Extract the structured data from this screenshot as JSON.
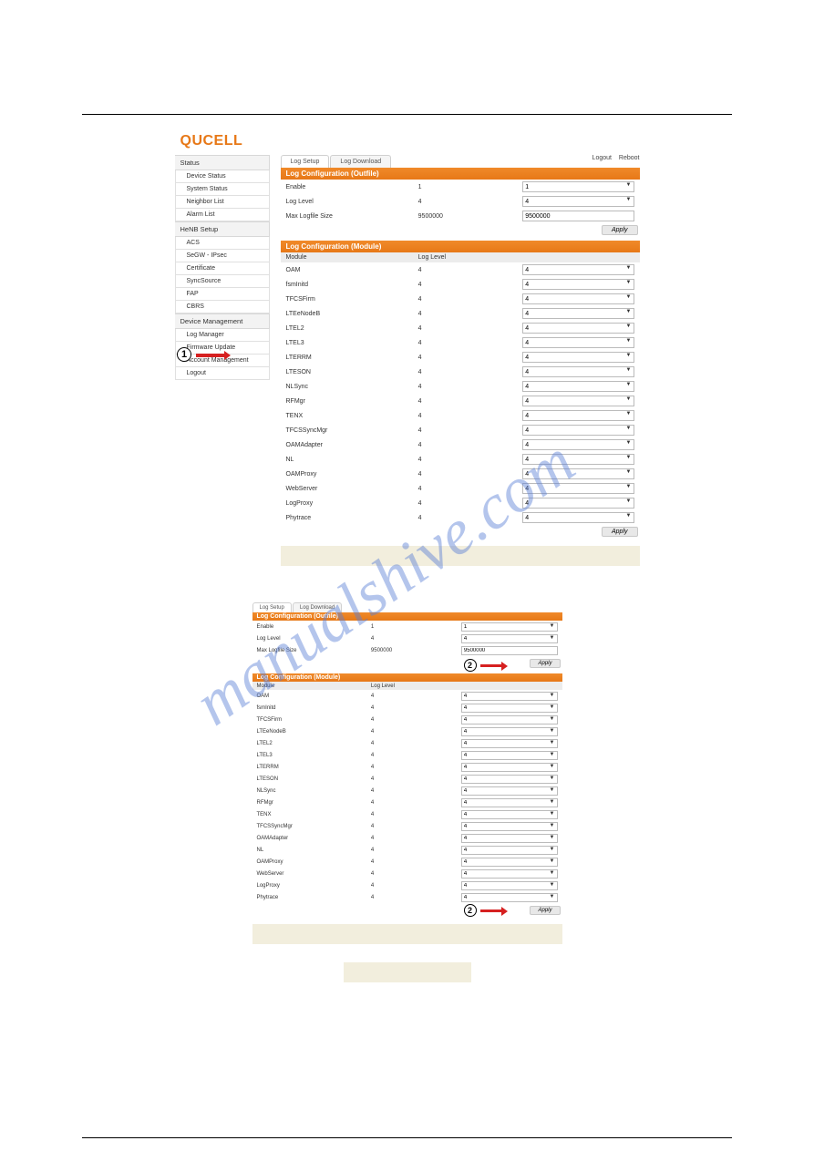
{
  "logo": "QUCELL",
  "top_links": {
    "logout": "Logout",
    "reboot": "Reboot"
  },
  "sidebar": {
    "sections": [
      {
        "title": "Status",
        "items": [
          "Device Status",
          "System Status",
          "Neighbor List",
          "Alarm List"
        ]
      },
      {
        "title": "HeNB Setup",
        "items": [
          "ACS",
          "SeGW - IPsec",
          "Certificate",
          "SyncSource",
          "FAP",
          "CBRS"
        ]
      },
      {
        "title": "Device Management",
        "items": [
          "Log Manager",
          "Firmware Update",
          "Account Management",
          "Logout"
        ]
      }
    ],
    "active": "Log Manager"
  },
  "tabs": {
    "setup": "Log Setup",
    "download": "Log Download",
    "active": "setup"
  },
  "outfile": {
    "title": "Log Configuration (Outfile)",
    "rows": [
      {
        "label": "Enable",
        "value": "1",
        "input_type": "select",
        "input_value": "1"
      },
      {
        "label": "Log Level",
        "value": "4",
        "input_type": "select",
        "input_value": "4"
      },
      {
        "label": "Max Logfile Size",
        "value": "9500000",
        "input_type": "text",
        "input_value": "9500000"
      }
    ],
    "apply": "Apply"
  },
  "module": {
    "title": "Log Configuration (Module)",
    "headers": {
      "c1": "Module",
      "c2": "Log Level",
      "c3": ""
    },
    "rows": [
      "OAM",
      "fsmInitd",
      "TFCSFirm",
      "LTEeNodeB",
      "LTEL2",
      "LTEL3",
      "LTERRM",
      "LTESON",
      "NLSync",
      "RFMgr",
      "TENX",
      "TFCSSyncMgr",
      "OAMAdapter",
      "NL",
      "OAMProxy",
      "WebServer",
      "LogProxy",
      "Phytrace"
    ],
    "value": "4",
    "select_value": "4",
    "apply": "Apply"
  },
  "annotations": {
    "one": "1",
    "two": "2"
  },
  "watermark": "manualshive.com",
  "colors": {
    "brand": "#e77817",
    "bar_grad_top": "#f08a2a",
    "bar_grad_bot": "#e77817",
    "arrow": "#d62020",
    "watermark": "#5a7fd6",
    "beige": "#f2eedd"
  }
}
